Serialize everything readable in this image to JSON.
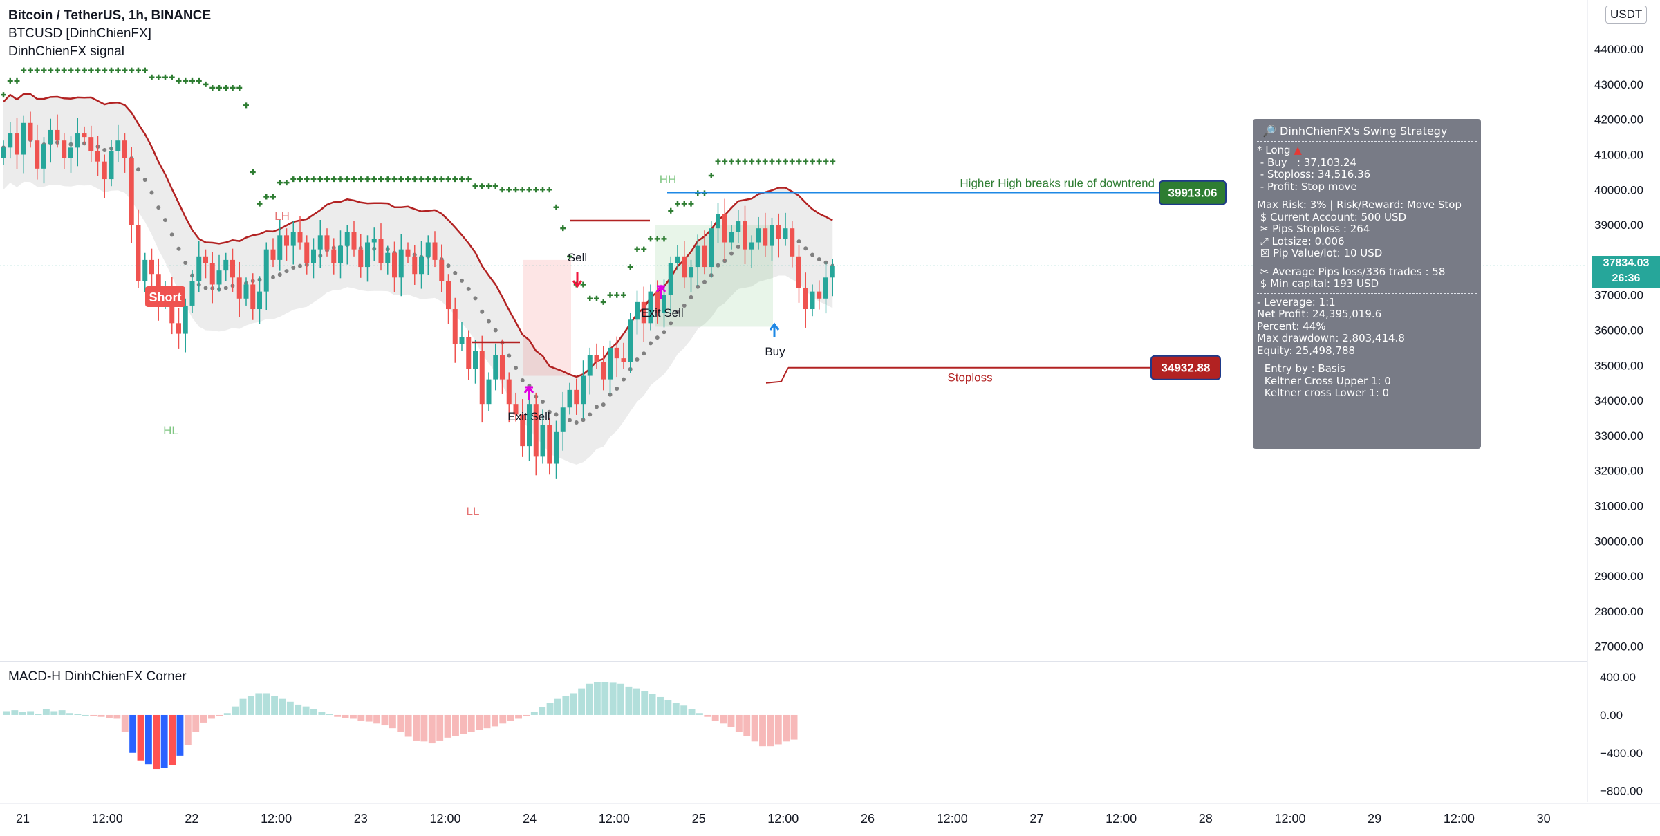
{
  "header": {
    "title": "Bitcoin / TetherUS, 1h, BINANCE",
    "indicator1": "BTCUSD [DinhChienFX]",
    "indicator2": "DinhChienFX signal",
    "macd_label": "MACD-H DinhChienFX Corner",
    "unit": "USDT"
  },
  "current_price": {
    "value": "37834.03",
    "countdown": "26:36"
  },
  "colors": {
    "up": "#26a69a",
    "down": "#ef5350",
    "band_line": "#b22222",
    "band_fill": "#e6e6e6",
    "mid_dots": "#808080",
    "green_cross": "#2e7d32",
    "arrow_magenta": "#e100e1",
    "arrow_red": "#f0163c",
    "arrow_blue": "#1e88e5",
    "info_bg": "#787b86",
    "macd_pos": "#b2dfdb",
    "macd_neg": "#f7b9b9",
    "macd_blue": "#2962ff",
    "macd_red": "#ff5252"
  },
  "chart_data": {
    "type": "candlestick",
    "x_ticks": [
      "21",
      "12:00",
      "22",
      "12:00",
      "23",
      "12:00",
      "24",
      "12:00",
      "25",
      "12:00",
      "26",
      "12:00",
      "27",
      "12:00",
      "28",
      "12:00",
      "29",
      "12:00",
      "30"
    ],
    "y_ticks": [
      "44000.00",
      "43000.00",
      "42000.00",
      "41000.00",
      "40000.00",
      "39000.00",
      "38000.00",
      "37000.00",
      "36000.00",
      "35000.00",
      "34000.00",
      "33000.00",
      "32000.00",
      "31000.00",
      "30000.00",
      "29000.00",
      "28000.00",
      "27000.00"
    ],
    "y_range": [
      26600,
      45400
    ],
    "macd_ticks": [
      "400.00",
      "0.00",
      "−400.00",
      "−800.00"
    ],
    "macd_range": [
      -920,
      540
    ],
    "close_series": [
      41200,
      41600,
      41000,
      41900,
      41400,
      40600,
      41300,
      41700,
      41400,
      40900,
      41200,
      41600,
      41500,
      41100,
      40800,
      40300,
      41100,
      41400,
      40900,
      39000,
      37400,
      38000,
      37600,
      36800,
      37200,
      36200,
      35900,
      36700,
      37400,
      38100,
      37900,
      37300,
      37700,
      38000,
      37500,
      36900,
      37300,
      36600,
      37100,
      38300,
      38000,
      38700,
      38400,
      38800,
      38500,
      37900,
      38300,
      38700,
      38300,
      37900,
      38400,
      38800,
      38300,
      37800,
      38500,
      38600,
      37900,
      38200,
      37500,
      38300,
      38100,
      37600,
      38100,
      38500,
      38000,
      37400,
      36600,
      35600,
      35800,
      34900,
      35400,
      33900,
      34600,
      35300,
      34600,
      33900,
      33600,
      32700,
      33900,
      32400,
      33300,
      32200,
      33100,
      33800,
      34300,
      33900,
      34700,
      35300,
      35100,
      34600,
      35500,
      35200,
      35100,
      36300,
      36800,
      36200,
      37100,
      36500,
      37000,
      37900,
      38100,
      37500,
      37800,
      38400,
      37800,
      38900,
      39300,
      38500,
      38800,
      39100,
      38300,
      38500,
      38900,
      38400,
      39000,
      38600,
      38900,
      38100,
      37200,
      36600,
      37100,
      36900,
      37500,
      37834
    ],
    "annotations": [
      "HL",
      "LH",
      "LL",
      "HH",
      "Short",
      "Sell",
      "Exit Sell",
      "Exit Sell",
      "Buy"
    ],
    "trade_lines": [
      {
        "label": "Higher High breaks rule of downtrend",
        "price": 39913.06,
        "tag": "39913.06"
      },
      {
        "label": "Stoploss",
        "price": 34932.88,
        "tag": "34932.88"
      }
    ],
    "macd_values": [
      40,
      50,
      30,
      40,
      10,
      60,
      40,
      50,
      20,
      10,
      0,
      -10,
      -20,
      -30,
      -40,
      -180,
      -400,
      -480,
      -520,
      -570,
      -560,
      -530,
      -430,
      -320,
      -180,
      -80,
      -40,
      -10,
      20,
      90,
      170,
      200,
      230,
      230,
      200,
      170,
      140,
      110,
      90,
      60,
      30,
      10,
      -20,
      -30,
      -40,
      -60,
      -70,
      -90,
      -110,
      -140,
      -180,
      -230,
      -270,
      -280,
      -300,
      -270,
      -240,
      -220,
      -200,
      -180,
      -160,
      -140,
      -120,
      -90,
      -60,
      -40,
      -10,
      30,
      80,
      130,
      170,
      200,
      230,
      280,
      330,
      350,
      350,
      340,
      330,
      300,
      280,
      250,
      220,
      190,
      160,
      130,
      100,
      60,
      20,
      -20,
      -60,
      -90,
      -130,
      -180,
      -220,
      -280,
      -330,
      -330,
      -310,
      -280,
      -260
    ]
  },
  "info_panel": {
    "title": "DinhChienFX's Swing Strategy",
    "lines_a": [
      "* Long",
      " - Buy   : 37,103.24",
      " - Stoploss: 34,516.36",
      " - Profit: Stop move"
    ],
    "lines_b": [
      "Max Risk: 3% | Risk/Reward: Move Stop",
      " $ Current Account: 500 USD",
      " ✂ Pips Stoploss : 264",
      " ⤢ Lotsize: 0.006",
      " ☒ Pip Value/lot: 10 USD"
    ],
    "lines_c": [
      " ✂ Average Pips loss/336 trades : 58",
      " $ Min capital: 193 USD"
    ],
    "lines_d": [
      "- Leverage: 1:1",
      "Net Profit: 24,395,019.6",
      "Percent: 44%",
      "Max drawdown: 2,803,414.8",
      "Equity: 25,498,788"
    ],
    "lines_e": [
      " Entry by : Basis",
      " Keltner Cross Upper 1: 0",
      " Keltner cross Lower 1: 0"
    ]
  }
}
